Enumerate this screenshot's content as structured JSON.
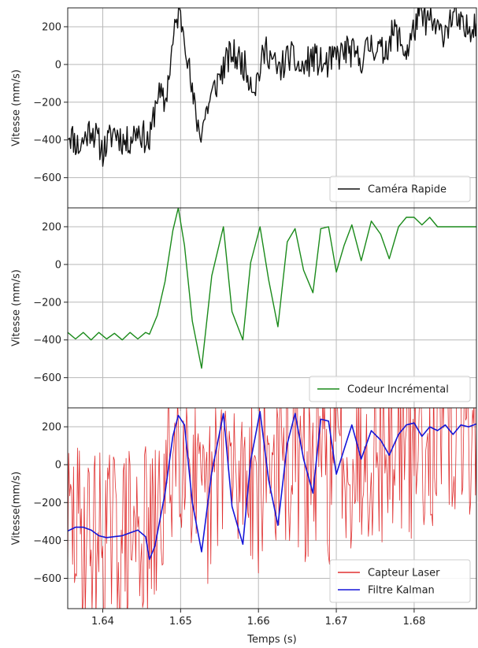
{
  "chart_data": [
    {
      "type": "line",
      "ylabel": "Vitesse (mm/s)",
      "xlabel": "",
      "xlim": [
        1.6355,
        1.688
      ],
      "ylim": [
        -760,
        300
      ],
      "x_ticks": [
        1.64,
        1.65,
        1.66,
        1.67,
        1.68
      ],
      "y_ticks": [
        -600,
        -400,
        -200,
        0,
        200
      ],
      "y_tick_labels": [
        "−600",
        "−400",
        "−200",
        "0",
        "200"
      ],
      "grid": true,
      "legend_position": "bottom-right",
      "series": [
        {
          "name": "Caméra Rapide",
          "color": "#111111",
          "line_width": 1.4,
          "x": [
            1.6355,
            1.637,
            1.6385,
            1.64,
            1.6415,
            1.643,
            1.6445,
            1.646,
            1.647,
            1.648,
            1.649,
            1.6497,
            1.6505,
            1.6515,
            1.6525,
            1.6535,
            1.655,
            1.6565,
            1.658,
            1.6595,
            1.661,
            1.6625,
            1.664,
            1.6655,
            1.667,
            1.6685,
            1.67,
            1.6715,
            1.673,
            1.6745,
            1.676,
            1.6775,
            1.679,
            1.6805,
            1.682,
            1.6835,
            1.685,
            1.6865,
            1.688
          ],
          "values": [
            -350,
            -440,
            -330,
            -460,
            -350,
            -420,
            -340,
            -420,
            -150,
            -210,
            110,
            280,
            180,
            -170,
            -370,
            -220,
            -60,
            60,
            10,
            -120,
            90,
            -40,
            50,
            -30,
            40,
            -10,
            40,
            80,
            20,
            110,
            60,
            180,
            60,
            250,
            230,
            160,
            260,
            170,
            240
          ],
          "noise_amplitude": 85,
          "noise_seed": 11
        }
      ]
    },
    {
      "type": "line",
      "ylabel": "Vitesse (mm/s)",
      "xlabel": "",
      "xlim": [
        1.6355,
        1.688
      ],
      "ylim": [
        -760,
        300
      ],
      "x_ticks": [
        1.64,
        1.65,
        1.66,
        1.67,
        1.68
      ],
      "y_ticks": [
        -600,
        -400,
        -200,
        0,
        200
      ],
      "y_tick_labels": [
        "−600",
        "−400",
        "−200",
        "0",
        "200"
      ],
      "grid": true,
      "legend_position": "bottom-right",
      "series": [
        {
          "name": "Codeur Incrémental",
          "color": "#1a8a1a",
          "line_width": 1.4,
          "x": [
            1.6355,
            1.6365,
            1.6375,
            1.6385,
            1.6395,
            1.6405,
            1.6415,
            1.6425,
            1.6435,
            1.6445,
            1.6455,
            1.646,
            1.647,
            1.648,
            1.649,
            1.6497,
            1.6505,
            1.6515,
            1.6527,
            1.654,
            1.6555,
            1.6566,
            1.658,
            1.659,
            1.6602,
            1.6613,
            1.6625,
            1.6637,
            1.6647,
            1.6658,
            1.667,
            1.668,
            1.669,
            1.67,
            1.671,
            1.672,
            1.6732,
            1.6745,
            1.6757,
            1.6768,
            1.678,
            1.679,
            1.68,
            1.681,
            1.682,
            1.683,
            1.684,
            1.685,
            1.686,
            1.687,
            1.688
          ],
          "values": [
            -360,
            -395,
            -360,
            -400,
            -360,
            -395,
            -365,
            -400,
            -360,
            -395,
            -360,
            -370,
            -270,
            -90,
            180,
            300,
            100,
            -300,
            -550,
            -60,
            200,
            -250,
            -400,
            10,
            200,
            -80,
            -330,
            120,
            190,
            -30,
            -150,
            190,
            200,
            -40,
            100,
            210,
            20,
            230,
            160,
            30,
            200,
            250,
            250,
            210,
            250,
            200,
            200,
            200,
            200,
            200,
            200
          ],
          "noise_amplitude": 0,
          "noise_seed": 0
        }
      ]
    },
    {
      "type": "line",
      "ylabel": "Vitesse(mm/s)",
      "xlabel": "Temps (s)",
      "xlim": [
        1.6355,
        1.688
      ],
      "ylim": [
        -760,
        300
      ],
      "x_ticks": [
        1.64,
        1.65,
        1.66,
        1.67,
        1.68
      ],
      "x_tick_labels": [
        "1.64",
        "1.65",
        "1.66",
        "1.67",
        "1.68"
      ],
      "y_ticks": [
        -600,
        -400,
        -200,
        0,
        200
      ],
      "y_tick_labels": [
        "−600",
        "−400",
        "−200",
        "0",
        "200"
      ],
      "grid": true,
      "legend_position": "bottom-right",
      "series": [
        {
          "name": "Capteur Laser",
          "color": "#e03030",
          "line_width": 0.8,
          "x": [
            1.6355,
            1.6375,
            1.6395,
            1.6415,
            1.6435,
            1.6455,
            1.6465,
            1.648,
            1.6495,
            1.651,
            1.6525,
            1.654,
            1.6555,
            1.657,
            1.6585,
            1.66,
            1.6615,
            1.663,
            1.6645,
            1.666,
            1.6675,
            1.669,
            1.6705,
            1.672,
            1.6735,
            1.675,
            1.6765,
            1.678,
            1.6795,
            1.681,
            1.6825,
            1.684,
            1.6855,
            1.687,
            1.688
          ],
          "values": [
            -330,
            -360,
            -380,
            -390,
            -370,
            -360,
            -420,
            -150,
            150,
            130,
            -300,
            -200,
            150,
            -150,
            50,
            -120,
            60,
            -50,
            80,
            -80,
            20,
            -60,
            100,
            20,
            60,
            120,
            30,
            140,
            60,
            160,
            120,
            180,
            150,
            190,
            200
          ],
          "noise_amplitude": 480,
          "noise_seed": 29
        },
        {
          "name": "Filtre Kalman",
          "color": "#1515d8",
          "line_width": 1.6,
          "x": [
            1.6355,
            1.6365,
            1.6375,
            1.6385,
            1.6395,
            1.6405,
            1.6415,
            1.6425,
            1.6435,
            1.6445,
            1.6455,
            1.646,
            1.6467,
            1.648,
            1.649,
            1.6497,
            1.6505,
            1.6515,
            1.6527,
            1.654,
            1.6555,
            1.6566,
            1.658,
            1.659,
            1.6602,
            1.6613,
            1.6625,
            1.6637,
            1.6647,
            1.6658,
            1.667,
            1.668,
            1.669,
            1.67,
            1.671,
            1.672,
            1.6732,
            1.6745,
            1.6757,
            1.6768,
            1.678,
            1.679,
            1.68,
            1.681,
            1.682,
            1.683,
            1.684,
            1.685,
            1.686,
            1.687,
            1.688
          ],
          "values": [
            -350,
            -330,
            -330,
            -345,
            -375,
            -385,
            -380,
            -375,
            -360,
            -345,
            -380,
            -500,
            -430,
            -150,
            150,
            260,
            210,
            -200,
            -460,
            -40,
            270,
            -220,
            -420,
            20,
            280,
            -80,
            -320,
            110,
            270,
            30,
            -150,
            240,
            230,
            -50,
            80,
            210,
            30,
            180,
            130,
            50,
            160,
            210,
            220,
            150,
            200,
            180,
            210,
            160,
            210,
            200,
            215
          ],
          "noise_amplitude": 0,
          "noise_seed": 0
        }
      ]
    }
  ]
}
